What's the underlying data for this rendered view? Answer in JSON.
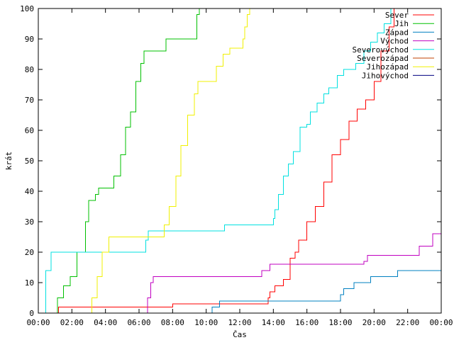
{
  "chart_data": {
    "type": "line",
    "xlabel": "Čas",
    "ylabel": "krát",
    "xlim": [
      0,
      24
    ],
    "ylim": [
      0,
      100
    ],
    "x_ticks": [
      {
        "value": 0,
        "label": "00:00"
      },
      {
        "value": 2,
        "label": "02:00"
      },
      {
        "value": 4,
        "label": "04:00"
      },
      {
        "value": 6,
        "label": "06:00"
      },
      {
        "value": 8,
        "label": "08:00"
      },
      {
        "value": 10,
        "label": "10:00"
      },
      {
        "value": 12,
        "label": "12:00"
      },
      {
        "value": 14,
        "label": "14:00"
      },
      {
        "value": 16,
        "label": "16:00"
      },
      {
        "value": 18,
        "label": "18:00"
      },
      {
        "value": 20,
        "label": "20:00"
      },
      {
        "value": 22,
        "label": "22:00"
      },
      {
        "value": 24,
        "label": "00:00"
      }
    ],
    "y_ticks": [
      0,
      10,
      20,
      30,
      40,
      50,
      60,
      70,
      80,
      90,
      100
    ],
    "grid": false,
    "legend_position": "top-right",
    "series": [
      {
        "name": "Sever",
        "color": "#ff0000",
        "step": true,
        "points": [
          [
            1.1,
            0
          ],
          [
            1.2,
            2
          ],
          [
            3,
            2
          ],
          [
            6,
            2
          ],
          [
            8,
            3
          ],
          [
            11,
            3
          ],
          [
            13.7,
            5
          ],
          [
            13.8,
            7
          ],
          [
            14.1,
            9
          ],
          [
            14.6,
            11
          ],
          [
            15,
            18
          ],
          [
            15.3,
            20
          ],
          [
            15.5,
            24
          ],
          [
            16,
            30
          ],
          [
            16.5,
            35
          ],
          [
            17,
            43
          ],
          [
            17.5,
            52
          ],
          [
            18,
            57
          ],
          [
            18.5,
            63
          ],
          [
            19,
            67
          ],
          [
            19.5,
            70
          ],
          [
            20,
            76
          ],
          [
            20.4,
            86
          ],
          [
            20.9,
            94
          ],
          [
            21.2,
            100
          ]
        ]
      },
      {
        "name": "Jih",
        "color": "#00c000",
        "step": true,
        "points": [
          [
            1.0,
            0
          ],
          [
            1.15,
            5
          ],
          [
            1.5,
            9
          ],
          [
            1.9,
            12
          ],
          [
            2.3,
            20
          ],
          [
            2.8,
            30
          ],
          [
            3.0,
            37
          ],
          [
            3.4,
            39
          ],
          [
            3.6,
            41
          ],
          [
            4.2,
            41
          ],
          [
            4.5,
            45
          ],
          [
            4.9,
            52
          ],
          [
            5.2,
            61
          ],
          [
            5.5,
            66
          ],
          [
            5.8,
            76
          ],
          [
            6.1,
            82
          ],
          [
            6.3,
            86
          ],
          [
            7.5,
            86
          ],
          [
            7.6,
            90
          ],
          [
            9.2,
            90
          ],
          [
            9.45,
            98
          ],
          [
            9.6,
            100
          ]
        ]
      },
      {
        "name": "Západ",
        "color": "#0080c0",
        "step": true,
        "points": [
          [
            10.3,
            0
          ],
          [
            10.35,
            2
          ],
          [
            10.6,
            2
          ],
          [
            10.8,
            4
          ],
          [
            13.6,
            4
          ],
          [
            17.6,
            4
          ],
          [
            18.0,
            6
          ],
          [
            18.2,
            8
          ],
          [
            18.6,
            8
          ],
          [
            18.8,
            10
          ],
          [
            19.6,
            10
          ],
          [
            19.8,
            12
          ],
          [
            21.2,
            12
          ],
          [
            21.4,
            14
          ],
          [
            24,
            14
          ]
        ]
      },
      {
        "name": "Východ",
        "color": "#c000c0",
        "step": true,
        "points": [
          [
            6.3,
            0
          ],
          [
            6.5,
            5
          ],
          [
            6.7,
            10
          ],
          [
            6.85,
            12
          ],
          [
            8.8,
            12
          ],
          [
            12.2,
            12
          ],
          [
            13.3,
            14
          ],
          [
            13.8,
            16
          ],
          [
            16.5,
            16
          ],
          [
            19.4,
            17
          ],
          [
            19.6,
            19
          ],
          [
            22.5,
            19
          ],
          [
            22.7,
            22
          ],
          [
            23.3,
            22
          ],
          [
            23.5,
            26
          ],
          [
            24,
            26
          ]
        ]
      },
      {
        "name": "Severovýchod",
        "color": "#00e0e0",
        "step": true,
        "points": [
          [
            0.1,
            0
          ],
          [
            0.45,
            14
          ],
          [
            0.75,
            20
          ],
          [
            4.8,
            20
          ],
          [
            6.2,
            20
          ],
          [
            6.4,
            24
          ],
          [
            6.55,
            27
          ],
          [
            10.9,
            27
          ],
          [
            11.1,
            29
          ],
          [
            13.7,
            29
          ],
          [
            14.0,
            31
          ],
          [
            14.1,
            34
          ],
          [
            14.3,
            39
          ],
          [
            14.6,
            45
          ],
          [
            14.9,
            49
          ],
          [
            15.2,
            53
          ],
          [
            15.6,
            61
          ],
          [
            16.0,
            62
          ],
          [
            16.2,
            66
          ],
          [
            16.6,
            69
          ],
          [
            17.0,
            72
          ],
          [
            17.3,
            74
          ],
          [
            17.8,
            78
          ],
          [
            18.2,
            80
          ],
          [
            18.9,
            82
          ],
          [
            19.4,
            86
          ],
          [
            19.8,
            89
          ],
          [
            20.2,
            92
          ],
          [
            20.6,
            95
          ],
          [
            21.0,
            100
          ]
        ]
      },
      {
        "name": "Severozápad",
        "color": "#c04000",
        "step": true,
        "points": [
          [
            20.3,
            0
          ]
        ]
      },
      {
        "name": "Jihozápad",
        "color": "#f0f000",
        "step": true,
        "points": [
          [
            3.0,
            0
          ],
          [
            3.2,
            5
          ],
          [
            3.5,
            12
          ],
          [
            3.8,
            20
          ],
          [
            4.2,
            25
          ],
          [
            7.3,
            25
          ],
          [
            7.5,
            29
          ],
          [
            7.8,
            35
          ],
          [
            8.2,
            45
          ],
          [
            8.5,
            55
          ],
          [
            8.9,
            65
          ],
          [
            9.3,
            72
          ],
          [
            9.5,
            76
          ],
          [
            10.4,
            76
          ],
          [
            10.6,
            81
          ],
          [
            11.0,
            85
          ],
          [
            11.4,
            87
          ],
          [
            12.2,
            90
          ],
          [
            12.3,
            94
          ],
          [
            12.45,
            98
          ],
          [
            12.6,
            100
          ]
        ]
      },
      {
        "name": "Jihovýchod",
        "color": "#000080",
        "step": true,
        "points": [
          [
            20.6,
            0
          ]
        ]
      }
    ]
  }
}
